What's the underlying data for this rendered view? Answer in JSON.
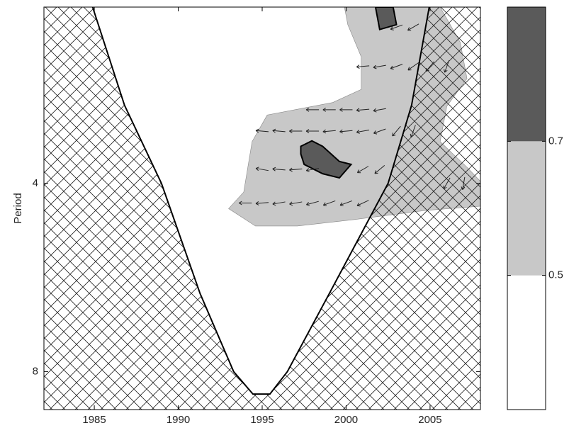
{
  "chart_data": {
    "type": "wavelet-coherence",
    "ylabel": "Period",
    "xlim": [
      1982,
      2008
    ],
    "xticks": [
      1985,
      1990,
      1995,
      2000,
      2005
    ],
    "ylim": [
      2.09,
      9.2
    ],
    "yticks": [
      4,
      8
    ],
    "ylog": true,
    "yreversed": true,
    "clim": [
      0.3,
      0.9
    ],
    "cticks": [
      0.5,
      0.7
    ],
    "colors": [
      "#ffffff",
      "#c8c8c8",
      "#5a5a5a"
    ],
    "regions": [
      {
        "level": 0.5,
        "x": [
          1993.0,
          1993.9,
          1994.4,
          1995.3,
          1999.2,
          2000.9,
          2000.9,
          2000.1,
          1999.9,
          2005.6,
          2006.8,
          2007.2,
          2006.0,
          2005.6,
          2007.2,
          2008,
          2008,
          2004.7,
          2000.5,
          1997.1,
          1994.6
        ],
        "y": [
          4.39,
          4.13,
          3.43,
          3.11,
          2.97,
          2.83,
          2.51,
          2.23,
          2.09,
          2.09,
          2.38,
          2.72,
          3.01,
          3.43,
          3.77,
          3.97,
          4.35,
          4.42,
          4.57,
          4.68,
          4.68
        ]
      },
      {
        "level": 0.7,
        "x": [
          1997.3,
          1997.96,
          1998.6,
          1999.6,
          2000.3,
          1999.6,
          1998.6,
          1997.5,
          1997.3
        ],
        "y": [
          3.49,
          3.42,
          3.49,
          3.69,
          3.73,
          3.92,
          3.86,
          3.73,
          3.59
        ]
      },
      {
        "level": 0.7,
        "x": [
          2001.75,
          2002.8,
          2003.0,
          2002.0
        ],
        "y": [
          2.09,
          2.09,
          2.23,
          2.27
        ]
      }
    ],
    "coi": {
      "x": [
        1984.9,
        1986.8,
        1989.0,
        1991.3,
        1993.3,
        1994.45,
        1995.46,
        1996.5,
        1999.0,
        2002.5,
        2003.9,
        2004.95
      ],
      "y": [
        2.09,
        3.0,
        4.0,
        6.0,
        8.0,
        8.69,
        8.69,
        8.0,
        6.0,
        4.0,
        3.0,
        2.09
      ]
    },
    "arrows": {
      "x": [
        1994,
        1995,
        1996,
        1997,
        1998,
        1999,
        2000,
        2001,
        1995,
        1996,
        1997,
        1998,
        2001,
        2002,
        1995,
        1996,
        1997,
        1998,
        1999,
        2000,
        2001,
        2002,
        2003,
        2004,
        1998,
        1999,
        2000,
        2001,
        2002,
        2001,
        2002,
        2003,
        2004,
        2005,
        2006,
        2003,
        2004,
        2006,
        2007
      ],
      "y": [
        4.3,
        4.3,
        4.3,
        4.3,
        4.3,
        4.3,
        4.3,
        4.3,
        3.8,
        3.8,
        3.8,
        3.8,
        3.8,
        3.8,
        3.3,
        3.3,
        3.3,
        3.3,
        3.3,
        3.3,
        3.3,
        3.3,
        3.3,
        3.3,
        3.05,
        3.05,
        3.05,
        3.05,
        3.05,
        2.6,
        2.6,
        2.6,
        2.6,
        2.6,
        2.6,
        2.25,
        2.25,
        4.0,
        4.0
      ],
      "angle": [
        180,
        185,
        190,
        190,
        195,
        200,
        200,
        205,
        170,
        175,
        185,
        190,
        210,
        220,
        175,
        175,
        180,
        180,
        185,
        185,
        190,
        200,
        230,
        250,
        180,
        180,
        180,
        185,
        190,
        185,
        190,
        200,
        215,
        230,
        250,
        200,
        210,
        240,
        260
      ]
    }
  }
}
